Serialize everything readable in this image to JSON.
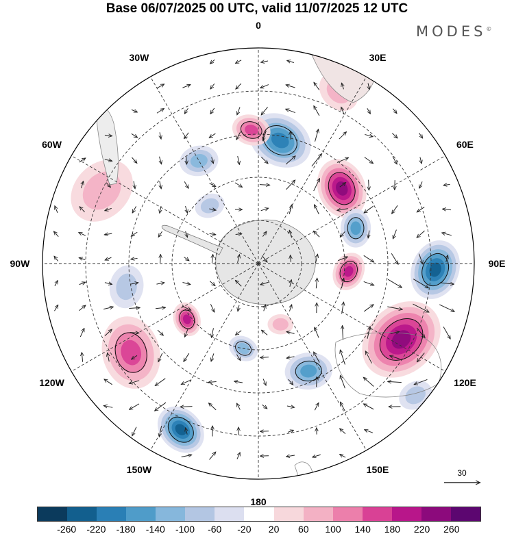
{
  "title": "Base 06/07/2025 00 UTC, valid 11/07/2025 12 UTC",
  "brand": "MODES",
  "brand_mark": "©",
  "longitude_labels": [
    "0",
    "30E",
    "60E",
    "90E",
    "120E",
    "150E",
    "180",
    "150W",
    "120W",
    "90W",
    "60W",
    "30W"
  ],
  "reference_vector": {
    "value": "30"
  },
  "colorbar": {
    "ticks": [
      "-260",
      "-220",
      "-180",
      "-140",
      "-100",
      "-60",
      "-20",
      "20",
      "60",
      "100",
      "140",
      "180",
      "220",
      "260"
    ],
    "colors": [
      "#0b3a5c",
      "#125f8e",
      "#2a7fb5",
      "#4f9cc9",
      "#86b7dc",
      "#b3c6e3",
      "#dcdff0",
      "#ffffff",
      "#f7d8dc",
      "#f3b1c4",
      "#ec7fab",
      "#d94195",
      "#b8168a",
      "#8c0a7c",
      "#5c0670"
    ]
  },
  "anomalies": [
    {
      "lon": 10,
      "r": 0.58,
      "size": 0.15,
      "value": -180
    },
    {
      "lon": -3,
      "r": 0.62,
      "size": 0.09,
      "value": 120
    },
    {
      "lon": 48,
      "r": 0.52,
      "size": 0.14,
      "value": 200
    },
    {
      "lon": 70,
      "r": 0.48,
      "size": 0.09,
      "value": -120
    },
    {
      "lon": 92,
      "r": 0.82,
      "size": 0.14,
      "value": -220
    },
    {
      "lon": 95,
      "r": 0.42,
      "size": 0.09,
      "value": 180
    },
    {
      "lon": 118,
      "r": 0.75,
      "size": 0.2,
      "value": 200
    },
    {
      "lon": 155,
      "r": 0.55,
      "size": 0.11,
      "value": -140
    },
    {
      "lon": 160,
      "r": 0.3,
      "size": 0.06,
      "value": 60
    },
    {
      "lon": -155,
      "r": 0.85,
      "size": 0.12,
      "value": -220
    },
    {
      "lon": -125,
      "r": 0.72,
      "size": 0.17,
      "value": 120
    },
    {
      "lon": -128,
      "r": 0.42,
      "size": 0.08,
      "value": 160
    },
    {
      "lon": -65,
      "r": 0.8,
      "size": 0.16,
      "value": 60
    },
    {
      "lon": -30,
      "r": 0.55,
      "size": 0.09,
      "value": -80
    },
    {
      "lon": -100,
      "r": 0.62,
      "size": 0.1,
      "value": -60
    },
    {
      "lon": 25,
      "r": 0.88,
      "size": 0.1,
      "value": 60
    },
    {
      "lon": -170,
      "r": 0.4,
      "size": 0.07,
      "value": -100
    },
    {
      "lon": -40,
      "r": 0.35,
      "size": 0.07,
      "value": -60
    },
    {
      "lon": 130,
      "r": 0.95,
      "size": 0.08,
      "value": -60
    }
  ]
}
